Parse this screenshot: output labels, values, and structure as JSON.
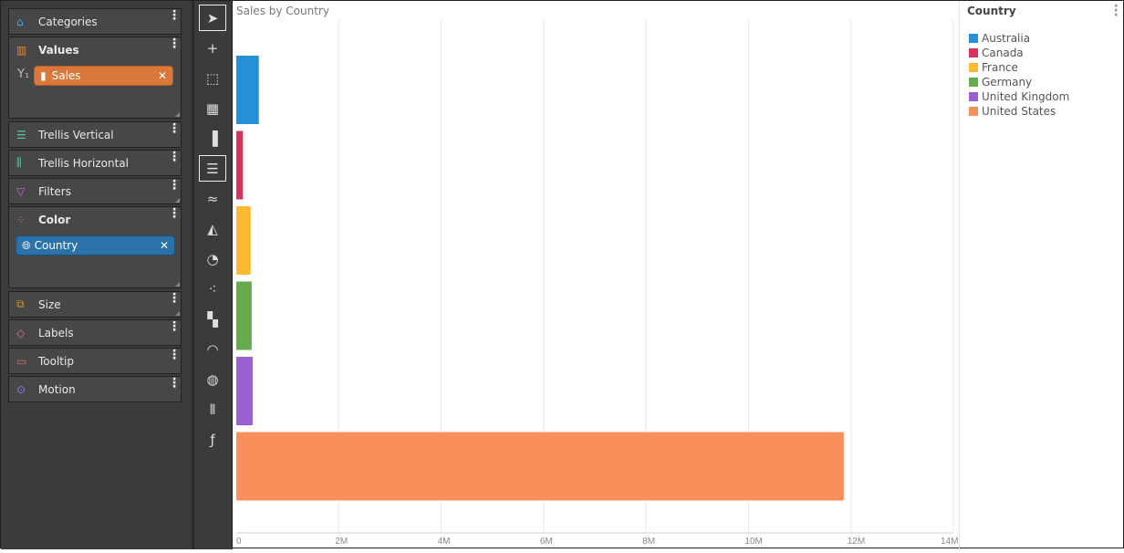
{
  "sidebar": {
    "categories": "Categories",
    "values": "Values",
    "values_axis": "Y₁",
    "sales_pill": "Sales",
    "trellis_vertical": "Trellis Vertical",
    "trellis_horizontal": "Trellis Horizontal",
    "filters": "Filters",
    "color": "Color",
    "country_pill": "Country",
    "size": "Size",
    "labels": "Labels",
    "tooltip": "Tooltip",
    "motion": "Motion",
    "menu_glyph": "⋮",
    "remove_glyph": "✕"
  },
  "toolbar": {
    "items": [
      "pointer",
      "add-pointer",
      "marquee-select",
      "table",
      "column-chart",
      "bar-chart",
      "line-chart",
      "area-chart",
      "pie-chart",
      "scatter-chart",
      "treemap",
      "gauge",
      "map",
      "pivot",
      "custom-formula"
    ],
    "selected": [
      "pointer",
      "bar-chart"
    ]
  },
  "chart_data": {
    "type": "bar",
    "orientation": "horizontal",
    "title": "Sales by Country",
    "categories": [
      "Australia",
      "Canada",
      "France",
      "Germany",
      "United Kingdom",
      "United States"
    ],
    "values": [
      440000,
      130000,
      280000,
      300000,
      320000,
      11860000
    ],
    "colors": [
      "#2490d8",
      "#d9325e",
      "#fdb92f",
      "#67ab4f",
      "#9a5fd1",
      "#f98f5b"
    ],
    "xlim": [
      0,
      14000000
    ],
    "x_ticks": [
      "0",
      "2M",
      "4M",
      "6M",
      "8M",
      "10M",
      "12M",
      "14M"
    ],
    "grid": true,
    "legend": {
      "title": "Country",
      "position": "right"
    }
  }
}
